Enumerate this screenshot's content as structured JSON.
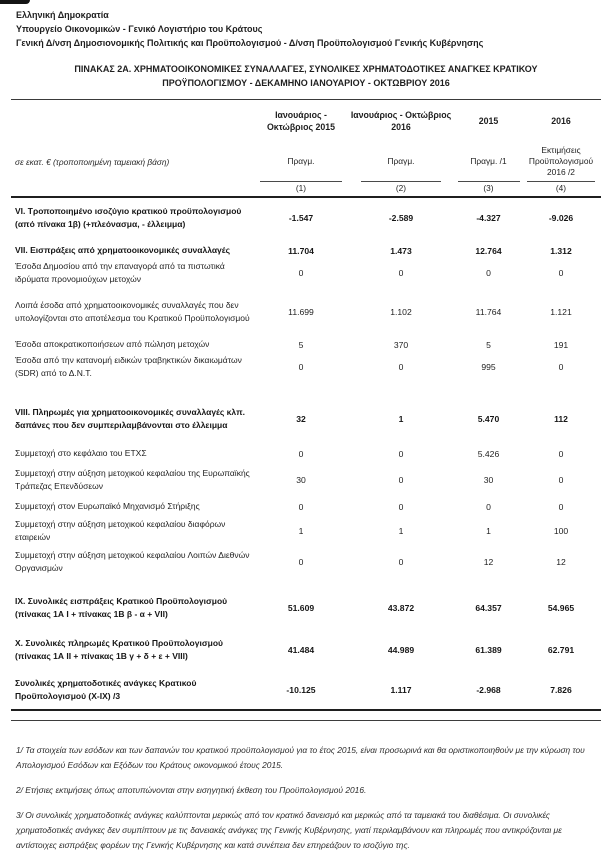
{
  "letterhead": {
    "line1": "Ελληνική Δημοκρατία",
    "line2": "Υπουργείο Οικονομικών - Γενικό Λογιστήριο του Κράτους",
    "line3": "Γενική Δ/νση Δημοσιονομικής Πολιτικής και Προϋπολογισμού  - Δ/νση Προϋπολογισμού Γενικής Κυβέρνησης"
  },
  "title": "ΠΙΝΑΚΑΣ  2Α. ΧΡΗΜΑΤΟΟΙΚΟΝΟΜΙΚΕΣ ΣΥΝΑΛΛΑΓΕΣ, ΣΥΝΟΛΙΚΕΣ ΧΡΗΜΑΤΟΔΟΤΙΚΕΣ ΑΝΑΓΚΕΣ ΚΡΑΤΙΚΟΥ ΠΡΟΫΠΟΛΟΓΙΣΜΟΥ - ΔΕΚΑΜΗΝΟ ΙΑΝΟΥΑΡΙΟΥ - ΟΚΤΩΒΡΙΟΥ 2016",
  "table": {
    "unit_label": "σε εκατ. €  (τροποποιημένη ταμειακή βάση)",
    "columns": [
      {
        "period": "Ιανουάριος - Οκτώβριος 2015",
        "measure": "Πραγμ.",
        "index": "(1)"
      },
      {
        "period": "Ιανουάριος - Οκτώβριος 2016",
        "measure": "Πραγμ.",
        "index": "(2)"
      },
      {
        "period": "2015",
        "measure": "Πραγμ.  /1",
        "index": "(3)"
      },
      {
        "period": "2016",
        "measure": "Εκτιμήσεις Προϋπολογισμού 2016  /2",
        "index": "(4)"
      }
    ],
    "rows": [
      {
        "label": "VI. Τροποποιημένο ισοζύγιο κρατικού προϋπολογισμού (από πίνακα 1β) (+πλεόνασμα, - έλλειμμα)",
        "bold": true,
        "gap": 7,
        "values": [
          "-1.547",
          "-2.589",
          "-4.327",
          "-9.026"
        ]
      },
      {
        "label": "VII. Εισπράξεις από χρηματοοικονομικές συναλλαγές",
        "bold": true,
        "gap": 13,
        "values": [
          "11.704",
          "1.473",
          "12.764",
          "1.312"
        ]
      },
      {
        "label": "Έσοδα Δημοσίου από την επαναγορά από τα πιστωτικά ιδρύματα προνομιούχων μετοχών",
        "bold": false,
        "gap": 3,
        "values": [
          "0",
          "0",
          "0",
          "0"
        ]
      },
      {
        "label": "Λοιπά έσοδα από χρηματοοικονομικές συναλλαγές που δεν υπολογίζονται στο αποτέλεσμα του Κρατικού Προϋπολογισμού",
        "bold": false,
        "gap": 13,
        "values": [
          "11.699",
          "1.102",
          "11.764",
          "1.121"
        ]
      },
      {
        "label": "Έσοδα αποκρατικοποιήσεων από πώληση μετοχών",
        "bold": false,
        "gap": 13,
        "values": [
          "5",
          "370",
          "5",
          "191"
        ]
      },
      {
        "label": "Έσοδα από την κατανομή ειδικών τραβηκτικών δικαιωμάτων (SDR) από το Δ.Ν.Τ.",
        "bold": false,
        "gap": 3,
        "values": [
          "0",
          "0",
          "995",
          "0"
        ]
      },
      {
        "label": "VIII. Πληρωμές  για χρηματοοικονομικές συναλλαγές κλπ. δαπάνες που δεν συμπεριλαμβάνονται στο έλλειμμα",
        "bold": true,
        "gap": 26,
        "values": [
          "32",
          "1",
          "5.470",
          "112"
        ]
      },
      {
        "label": "Συμμετοχή στο κεφάλαιο του ΕΤΧΣ",
        "bold": false,
        "gap": 15,
        "values": [
          "0",
          "0",
          "5.426",
          "0"
        ]
      },
      {
        "label": "Συμμετοχή στην αύξηση μετοχικού κεφαλαίου της Ευρωπαϊκής Τράπεζας Επενδύσεων",
        "bold": false,
        "gap": 7,
        "values": [
          "30",
          "0",
          "30",
          "0"
        ]
      },
      {
        "label": "Συμμετοχή στον Ευρωπαϊκό Μηχανισμό Στήριξης",
        "bold": false,
        "gap": 7,
        "values": [
          "0",
          "0",
          "0",
          "0"
        ]
      },
      {
        "label": "Συμμετοχή στην αύξηση μετοχικού κεφαλαίου διαφόρων εταιρειών",
        "bold": false,
        "gap": 5,
        "values": [
          "1",
          "1",
          "1",
          "100"
        ]
      },
      {
        "label": "Συμμετοχή στην αύξηση μετοχικού κεφαλαίου Λοιπών Διεθνών Οργανισμών",
        "bold": false,
        "gap": 5,
        "values": [
          "0",
          "0",
          "12",
          "12"
        ]
      },
      {
        "label": "IX.  Συνολικές εισπράξεις Κρατικού Προϋπολογισμού (πίνακας 1Α Ι + πίνακας 1Β β - α + VII)",
        "bold": true,
        "gap": 20,
        "values": [
          "51.609",
          "43.872",
          "64.357",
          "54.965"
        ]
      },
      {
        "label": "X. Συνολικές πληρωμές Κρατικού Προϋπολογισμού (πίνακας 1Α ΙΙ + πίνακας 1Β γ + δ + ε + VIII)",
        "bold": true,
        "gap": 16,
        "values": [
          "41.484",
          "44.989",
          "61.389",
          "62.791"
        ]
      },
      {
        "label": "Συνολικές χρηματοδοτικές ανάγκες Κρατικού Προϋπολογισμού (Χ-ΙΧ)  /3",
        "bold": true,
        "gap": 14,
        "values": [
          "-10.125",
          "1.117",
          "-2.968",
          "7.826"
        ]
      }
    ]
  },
  "footnotes": [
    "1/ Τα στοιχεία των εσόδων και των δαπανών του κρατικού προϋπολογισμού για το έτος 2015, είναι προσωρινά και θα οριστικοποιηθούν με την κύρωση του Απολογισμού Εσόδων και Εξόδων του Κράτους οικονομικού έτους 2015.",
    "2/ Ετήσιες εκτιμήσεις όπως αποτυπώνονται στην εισηγητική έκθεση του Προϋπολογισμού 2016.",
    "3/ Οι συνολικές χρηματοδοτικές ανάγκες καλύπτονται μερικώς από τον κρατικό δανεισμό και μερικώς από τα ταμειακά του διαθέσιμα. Οι συνολικές χρηματοδοτικές ανάγκες δεν συμπίπτουν με τις δανειακές ανάγκες της Γενικής Κυβέρνησης, γιατί περιλαμβάνουν και πληρωμές που αντικρύζονται με αντίστοιχες εισπράξεις φορέων της Γενικής Κυβέρνησης και κατά συνέπεια δεν επηρεάζουν το ισοζύγιο της."
  ]
}
